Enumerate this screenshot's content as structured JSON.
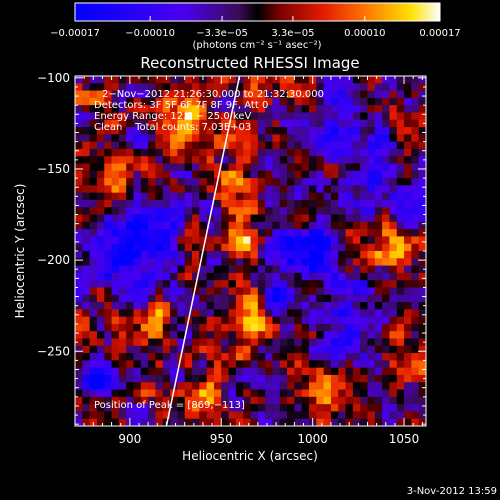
{
  "chart_data": {
    "type": "heatmap",
    "title": "Reconstructed RHESSI Image",
    "xlabel": "Heliocentric X (arcsec)",
    "ylabel": "Heliocentric Y (arcsec)",
    "xlim": [
      870,
      1062
    ],
    "ylim": [
      -291,
      -99
    ],
    "x_ticks": [
      {
        "value": 900,
        "label": "900"
      },
      {
        "value": 950,
        "label": "950"
      },
      {
        "value": 1000,
        "label": "1000"
      },
      {
        "value": 1050,
        "label": "1050"
      }
    ],
    "y_ticks": [
      {
        "value": -100,
        "label": "−100"
      },
      {
        "value": -150,
        "label": "−150"
      },
      {
        "value": -200,
        "label": "−200"
      },
      {
        "value": -250,
        "label": "−250"
      }
    ],
    "colorbar": {
      "range": [
        -0.00017,
        0.00017
      ],
      "ticks": [
        {
          "value": -0.00017,
          "label": "−0.00017"
        },
        {
          "value": -0.0001,
          "label": "−0.00010"
        },
        {
          "value": -3.3e-05,
          "label": "−3.3e−05"
        },
        {
          "value": 3.3e-05,
          "label": "3.3e−05"
        },
        {
          "value": 0.0001,
          "label": "0.00010"
        },
        {
          "value": 0.00017,
          "label": "0.00017"
        }
      ],
      "units_label": "(photons cm⁻² s⁻¹ asec⁻²)"
    },
    "annotations": [
      "2−Nov−2012 21:26:30.000 to 21:32:30.000",
      "Detectors: 3F 5F 6F 7F 8F 9F, Att 0",
      "Energy Range: 12.0 − 25.0 keV",
      "Clean    Total counts: 7.03E+03"
    ],
    "peak_label": "Position of Peak = [869,−113]",
    "limb_line": [
      {
        "x": 920,
        "y": -291
      },
      {
        "x": 960,
        "y": -99
      }
    ],
    "grid": false
  },
  "footer": {
    "timestamp": "3-Nov-2012 13:59"
  }
}
